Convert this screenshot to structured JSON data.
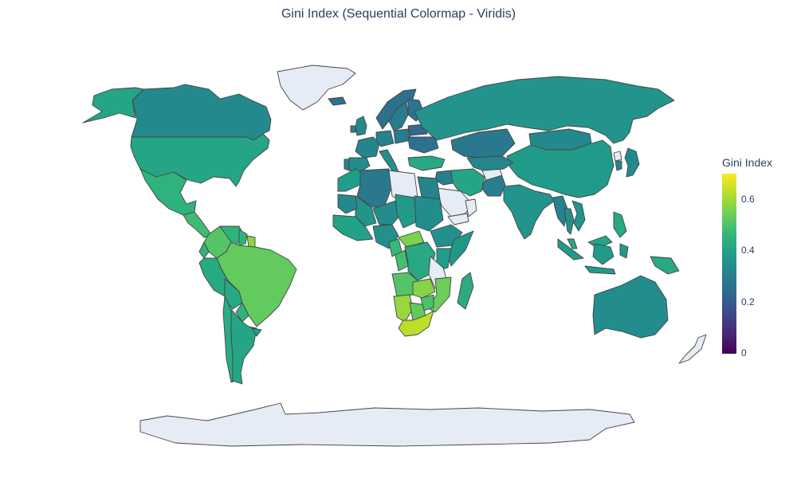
{
  "title": "Gini Index (Sequential Colormap - Viridis)",
  "colorbar": {
    "title": "Gini Index",
    "ticks": [
      "0",
      "0.2",
      "0.4",
      "0.6"
    ],
    "range": [
      0,
      0.7
    ],
    "colorscale": "Viridis"
  },
  "colors": {
    "no_data": "#e5ecf6",
    "border": "#444444",
    "title_text": "#2a3f5f"
  },
  "chart_data": {
    "type": "choropleth",
    "projection": "natural earth",
    "title": "Gini Index (Sequential Colormap - Viridis)",
    "color_variable": "Gini Index",
    "colorscale": "Viridis",
    "zlim": [
      0,
      0.7
    ],
    "countries": [
      {
        "name": "United States",
        "value": 0.41
      },
      {
        "name": "Canada",
        "value": 0.33
      },
      {
        "name": "Alaska (United States)",
        "value": 0.41
      },
      {
        "name": "Mexico",
        "value": 0.45
      },
      {
        "name": "Central America",
        "value": 0.48
      },
      {
        "name": "Colombia",
        "value": 0.51
      },
      {
        "name": "Venezuela",
        "value": 0.45
      },
      {
        "name": "Guyana",
        "value": 0.45
      },
      {
        "name": "Suriname",
        "value": 0.58
      },
      {
        "name": "Brazil",
        "value": 0.53
      },
      {
        "name": "Peru",
        "value": 0.42
      },
      {
        "name": "Ecuador",
        "value": 0.45
      },
      {
        "name": "Bolivia",
        "value": 0.42
      },
      {
        "name": "Paraguay",
        "value": 0.45
      },
      {
        "name": "Chile",
        "value": 0.43
      },
      {
        "name": "Argentina",
        "value": 0.41
      },
      {
        "name": "Uruguay",
        "value": 0.39
      },
      {
        "name": "Greenland",
        "value": null
      },
      {
        "name": "Iceland",
        "value": 0.26
      },
      {
        "name": "United Kingdom",
        "value": 0.33
      },
      {
        "name": "Ireland",
        "value": 0.31
      },
      {
        "name": "Norway",
        "value": 0.26
      },
      {
        "name": "Sweden",
        "value": 0.29
      },
      {
        "name": "Finland",
        "value": 0.27
      },
      {
        "name": "France",
        "value": 0.32
      },
      {
        "name": "Spain",
        "value": 0.34
      },
      {
        "name": "Portugal",
        "value": 0.33
      },
      {
        "name": "Germany",
        "value": 0.31
      },
      {
        "name": "Poland",
        "value": 0.29
      },
      {
        "name": "Italy",
        "value": 0.35
      },
      {
        "name": "Ukraine",
        "value": 0.26
      },
      {
        "name": "Belarus",
        "value": 0.24
      },
      {
        "name": "Turkey",
        "value": 0.42
      },
      {
        "name": "Russia",
        "value": 0.36
      },
      {
        "name": "Kazakhstan",
        "value": 0.28
      },
      {
        "name": "Mongolia",
        "value": 0.33
      },
      {
        "name": "China",
        "value": 0.38
      },
      {
        "name": "North Korea",
        "value": null
      },
      {
        "name": "South Korea",
        "value": 0.31
      },
      {
        "name": "Japan",
        "value": 0.33
      },
      {
        "name": "India",
        "value": 0.36
      },
      {
        "name": "Pakistan",
        "value": 0.3
      },
      {
        "name": "Afghanistan",
        "value": null
      },
      {
        "name": "Iran",
        "value": 0.41
      },
      {
        "name": "Iraq",
        "value": 0.3
      },
      {
        "name": "Saudi Arabia",
        "value": null
      },
      {
        "name": "Yemen",
        "value": null
      },
      {
        "name": "Oman",
        "value": null
      },
      {
        "name": "Central Asia",
        "value": 0.32
      },
      {
        "name": "Myanmar",
        "value": 0.31
      },
      {
        "name": "Thailand",
        "value": 0.35
      },
      {
        "name": "Vietnam",
        "value": 0.36
      },
      {
        "name": "Malaysia",
        "value": 0.41
      },
      {
        "name": "Indonesia",
        "value": 0.38
      },
      {
        "name": "Philippines",
        "value": 0.42
      },
      {
        "name": "Papua New Guinea",
        "value": 0.42
      },
      {
        "name": "Australia",
        "value": 0.34
      },
      {
        "name": "New Zealand",
        "value": null
      },
      {
        "name": "Morocco",
        "value": 0.39
      },
      {
        "name": "Algeria",
        "value": 0.28
      },
      {
        "name": "Libya",
        "value": null
      },
      {
        "name": "Egypt",
        "value": 0.32
      },
      {
        "name": "Mali",
        "value": 0.36
      },
      {
        "name": "Niger",
        "value": 0.34
      },
      {
        "name": "Chad",
        "value": 0.38
      },
      {
        "name": "Sudan",
        "value": 0.34
      },
      {
        "name": "Mauritania",
        "value": 0.33
      },
      {
        "name": "West Africa",
        "value": 0.4
      },
      {
        "name": "Nigeria",
        "value": 0.35
      },
      {
        "name": "Ethiopia",
        "value": 0.35
      },
      {
        "name": "Somalia",
        "value": 0.37
      },
      {
        "name": "Kenya",
        "value": 0.39
      },
      {
        "name": "Central African Republic",
        "value": 0.56
      },
      {
        "name": "Cameroon",
        "value": 0.47
      },
      {
        "name": "DR Congo",
        "value": 0.42
      },
      {
        "name": "Congo",
        "value": 0.49
      },
      {
        "name": "Tanzania",
        "value": null
      },
      {
        "name": "Angola",
        "value": 0.51
      },
      {
        "name": "Zambia",
        "value": 0.57
      },
      {
        "name": "Mozambique",
        "value": 0.54
      },
      {
        "name": "Zimbabwe",
        "value": 0.5
      },
      {
        "name": "Namibia",
        "value": 0.59
      },
      {
        "name": "Botswana",
        "value": 0.53
      },
      {
        "name": "South Africa",
        "value": 0.63
      },
      {
        "name": "Madagascar",
        "value": 0.43
      },
      {
        "name": "Antarctica",
        "value": null
      }
    ]
  }
}
